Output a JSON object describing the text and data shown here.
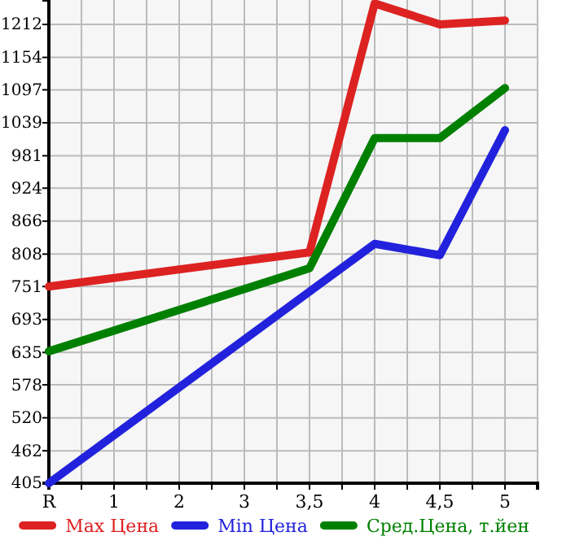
{
  "chart_data": {
    "type": "line",
    "categories": [
      "R",
      "1",
      "2",
      "3",
      "3,5",
      "4",
      "4,5",
      "5"
    ],
    "ylim": [
      405,
      1255
    ],
    "yticks": [
      405,
      462,
      520,
      578,
      635,
      693,
      751,
      808,
      866,
      924,
      981,
      1039,
      1097,
      1154,
      1212
    ],
    "grid": true,
    "legend": "bottom",
    "marker": "none",
    "line_style": "solid",
    "series": [
      {
        "name": "Max Цена",
        "color": "#dd2222",
        "values": [
          751,
          null,
          null,
          null,
          811,
          1249,
          1212,
          1219
        ]
      },
      {
        "name": "Min Цена",
        "color": "#2222dd",
        "values": [
          405,
          null,
          null,
          null,
          742,
          826,
          806,
          1026
        ]
      },
      {
        "name": "Сред.Цена, т.йен",
        "color": "#008000",
        "values": [
          637,
          null,
          null,
          null,
          783,
          1012,
          1012,
          1100
        ]
      }
    ]
  }
}
